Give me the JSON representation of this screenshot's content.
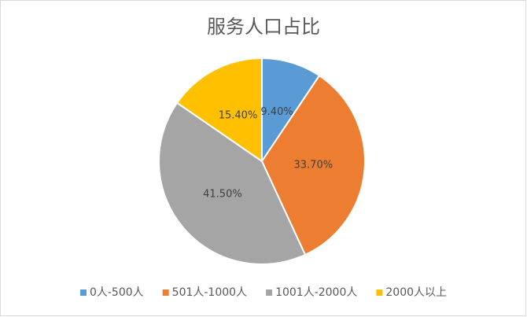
{
  "chart_data": {
    "type": "pie",
    "title": "服务人口占比",
    "categories": [
      "0人-500人",
      "501人-1000人",
      "1001人-2000人",
      "2000人以上"
    ],
    "values": [
      9.4,
      33.7,
      41.5,
      15.4
    ],
    "value_labels": [
      "9.40%",
      "33.70%",
      "41.50%",
      "15.40%"
    ],
    "colors": [
      "#5b9bd5",
      "#ed7d31",
      "#a5a5a5",
      "#ffc000"
    ],
    "legend": "bottom"
  }
}
